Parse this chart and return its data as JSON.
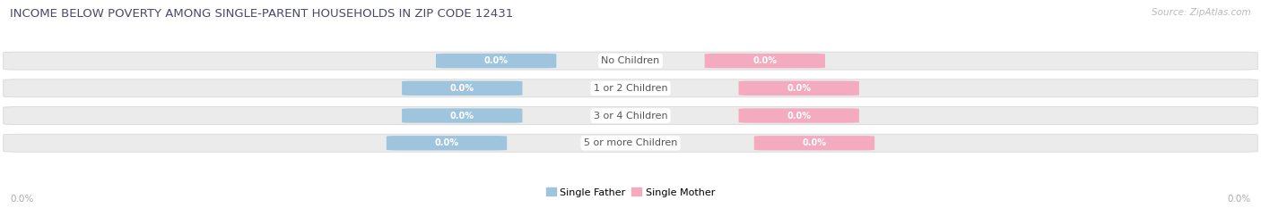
{
  "title": "INCOME BELOW POVERTY AMONG SINGLE-PARENT HOUSEHOLDS IN ZIP CODE 12431",
  "source_text": "Source: ZipAtlas.com",
  "categories": [
    "No Children",
    "1 or 2 Children",
    "3 or 4 Children",
    "5 or more Children"
  ],
  "single_father_values": [
    0.0,
    0.0,
    0.0,
    0.0
  ],
  "single_mother_values": [
    0.0,
    0.0,
    0.0,
    0.0
  ],
  "father_color": "#9ec4de",
  "mother_color": "#f4aabf",
  "bar_bg_color": "#ebebeb",
  "bar_border_color": "#d8d8d8",
  "title_color": "#4a4a6a",
  "axis_label_color": "#aaaaaa",
  "background_color": "#ffffff",
  "x_left_label": "0.0%",
  "x_right_label": "0.0%",
  "legend_father": "Single Father",
  "legend_mother": "Single Mother",
  "cat_label_color": "#555555",
  "value_text_color": "#ffffff",
  "figsize": [
    14.06,
    2.33
  ],
  "dpi": 100
}
